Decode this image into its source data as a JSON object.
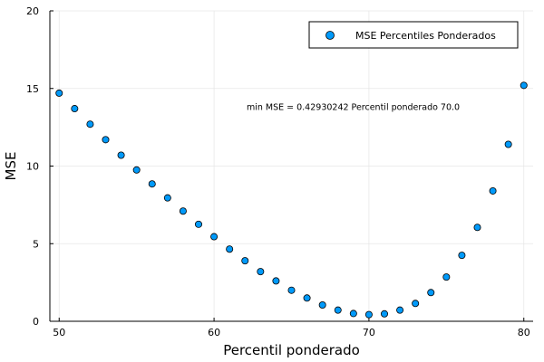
{
  "chart_data": {
    "type": "scatter",
    "title": "",
    "xlabel": "Percentil ponderado",
    "ylabel": "MSE",
    "xlim": [
      49.4,
      80.6
    ],
    "ylim": [
      0,
      20
    ],
    "xticks": [
      50,
      60,
      70,
      80
    ],
    "yticks": [
      0,
      5,
      10,
      15,
      20
    ],
    "grid": true,
    "legend_position": "top-right",
    "point_color": "#009AFA",
    "series": [
      {
        "name": "MSE Percentiles Ponderados",
        "x": [
          50,
          51,
          52,
          53,
          54,
          55,
          56,
          57,
          58,
          59,
          60,
          61,
          62,
          63,
          64,
          65,
          66,
          67,
          68,
          69,
          70,
          71,
          72,
          73,
          74,
          75,
          76,
          77,
          78,
          79,
          80
        ],
        "y": [
          14.7,
          13.7,
          12.7,
          11.7,
          10.7,
          9.75,
          8.85,
          7.95,
          7.1,
          6.25,
          5.45,
          4.65,
          3.9,
          3.2,
          2.6,
          2.0,
          1.5,
          1.05,
          0.72,
          0.5,
          0.43,
          0.48,
          0.72,
          1.15,
          1.85,
          2.85,
          4.25,
          6.05,
          8.4,
          11.4,
          15.2
        ]
      }
    ],
    "annotation": {
      "text": "min MSE = 0.42930242  Percentil ponderado 70.0",
      "x": 62.1,
      "y": 13.8
    }
  }
}
